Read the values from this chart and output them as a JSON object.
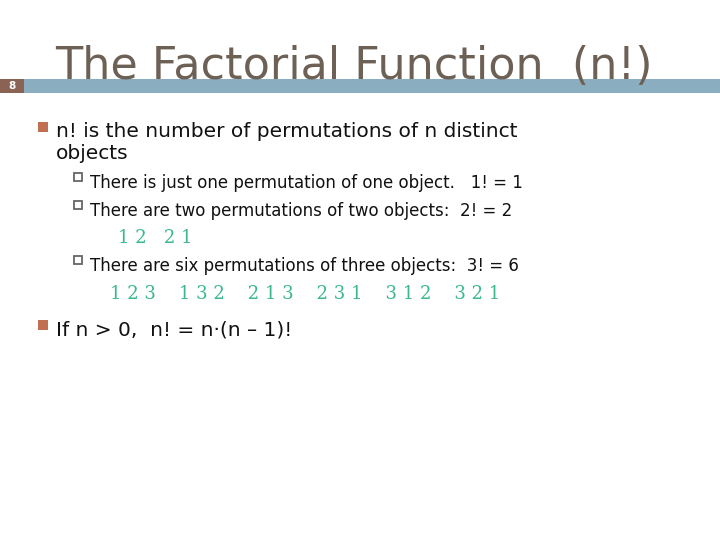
{
  "title": "The Factorial Function  (n!)",
  "slide_number": "8",
  "bg_color": "#ffffff",
  "title_color": "#6d6055",
  "title_fontsize": 32,
  "bar_color": "#8badc0",
  "bar_dark_color": "#8B6355",
  "slide_num_color": "#ffffff",
  "bullet_sq_color": "#c07050",
  "green_color": "#3ab88a",
  "sub_bullet_color": "#333333",
  "bullet1_line1": "n! is the number of permutations of n distinct",
  "bullet1_line2": "objects",
  "sub1_text": "There is just one permutation of one object.   1! = 1",
  "sub2_text": "There are two permutations of two objects:  2! = 2",
  "sub2_green": "1 2   2 1",
  "sub3_text": "There are six permutations of three objects:  3! = 6",
  "sub3_green": "1 2 3    1 3 2    2 1 3    2 3 1    3 1 2    3 2 1",
  "bullet2_text": "If n > 0,  n! = n·(n – 1)!"
}
